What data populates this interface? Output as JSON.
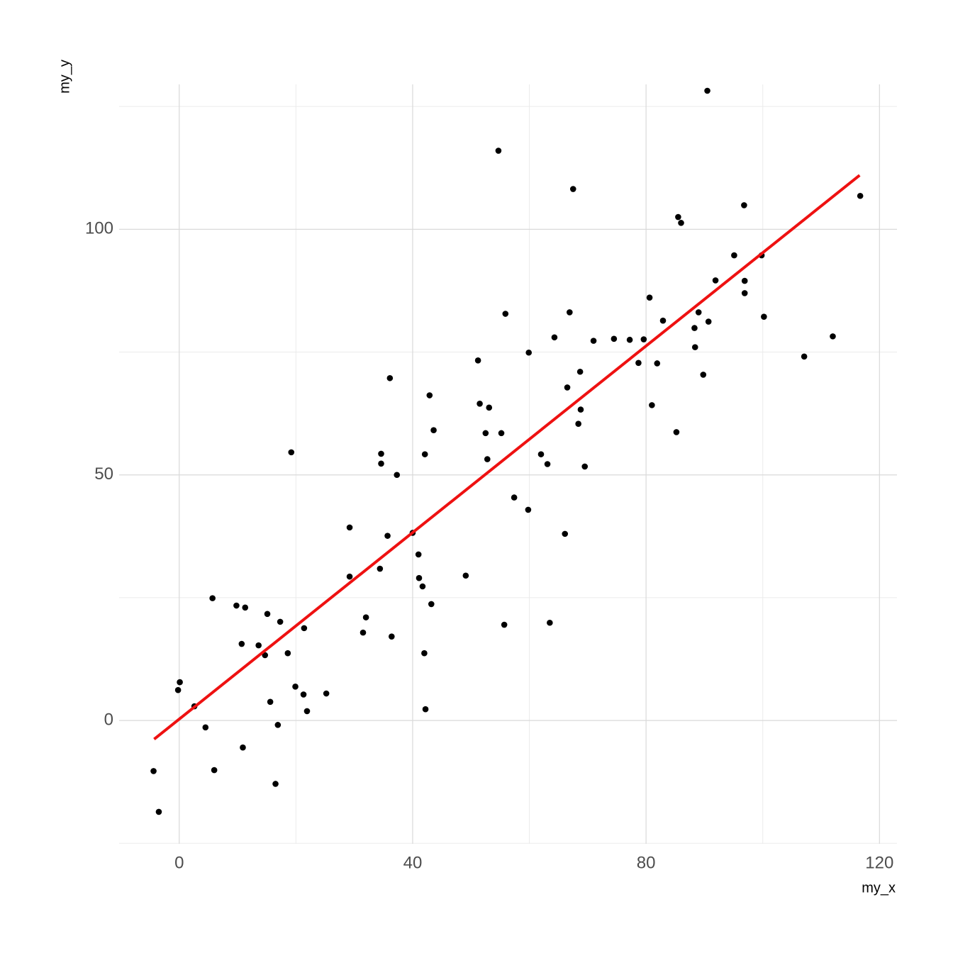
{
  "chart_data": {
    "type": "scatter",
    "x_label": "my_x",
    "y_label": "my_y",
    "xlim": [
      -10.3,
      123.0
    ],
    "ylim": [
      -25.1,
      129.5
    ],
    "xticks": [
      0,
      40,
      80,
      120
    ],
    "yticks": [
      0,
      50,
      100
    ],
    "x_minor_grid": [
      20,
      60,
      100
    ],
    "y_minor_grid": [
      -25,
      25,
      75,
      125
    ],
    "grid": true,
    "grid_color": "#d9d9d9",
    "minor_grid_color": "#ebebeb",
    "color": "#000000",
    "x": [
      -4.4,
      -3.5,
      -0.2,
      0.1,
      2.6,
      4.5,
      5.7,
      6.0,
      9.8,
      10.7,
      10.9,
      11.3,
      13.6,
      14.7,
      15.1,
      15.6,
      16.5,
      16.9,
      17.3,
      18.6,
      19.2,
      19.9,
      21.3,
      21.4,
      21.9,
      25.2,
      29.2,
      29.2,
      31.5,
      32.0,
      34.4,
      34.6,
      34.6,
      35.7,
      36.1,
      36.4,
      37.3,
      40.0,
      41.0,
      41.1,
      41.7,
      42.0,
      42.1,
      42.2,
      42.9,
      43.2,
      43.6,
      49.1,
      51.2,
      51.5,
      52.5,
      52.8,
      53.1,
      54.7,
      55.2,
      55.7,
      55.9,
      57.4,
      59.8,
      59.9,
      62.0,
      63.1,
      63.5,
      64.3,
      66.1,
      66.5,
      66.9,
      67.5,
      68.4,
      68.7,
      68.8,
      69.5,
      71.0,
      74.5,
      77.2,
      78.7,
      79.6,
      80.6,
      81.0,
      81.9,
      82.9,
      85.2,
      85.5,
      86.0,
      88.3,
      88.4,
      89.0,
      89.8,
      90.5,
      90.7,
      91.9,
      95.1,
      96.8,
      96.9,
      96.9,
      99.8,
      100.2,
      107.1,
      112.0,
      116.7
    ],
    "values": [
      -10.3,
      -18.6,
      6.2,
      7.8,
      2.9,
      -1.4,
      24.9,
      -10.1,
      23.4,
      15.6,
      -5.5,
      23.0,
      15.3,
      13.3,
      21.7,
      3.8,
      -12.9,
      -0.9,
      20.1,
      13.7,
      54.6,
      6.9,
      5.3,
      18.8,
      1.9,
      5.5,
      39.3,
      29.3,
      17.9,
      21.0,
      30.9,
      54.3,
      52.3,
      37.6,
      69.7,
      17.1,
      50.0,
      38.2,
      33.8,
      29.0,
      27.3,
      13.7,
      54.2,
      2.3,
      66.2,
      23.7,
      59.1,
      29.5,
      73.3,
      64.5,
      58.5,
      53.2,
      63.7,
      116.0,
      58.5,
      19.5,
      82.8,
      45.4,
      42.9,
      74.9,
      54.2,
      52.2,
      19.9,
      78.0,
      38.0,
      67.8,
      83.1,
      108.2,
      60.4,
      71.0,
      63.3,
      51.7,
      77.3,
      77.7,
      77.5,
      72.8,
      77.6,
      86.1,
      64.2,
      72.7,
      81.4,
      58.7,
      102.5,
      101.3,
      79.9,
      76.0,
      83.1,
      70.4,
      128.2,
      81.2,
      89.6,
      94.7,
      104.9,
      89.5,
      87.0,
      94.7,
      82.2,
      74.1,
      78.2,
      106.8
    ],
    "fit_line": {
      "color": "#ee1111",
      "x": [
        -4.3,
        116.6
      ],
      "y": [
        -3.8,
        111.0
      ]
    }
  }
}
